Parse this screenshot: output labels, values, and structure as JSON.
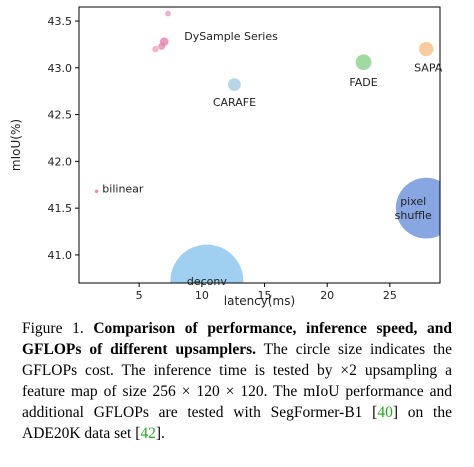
{
  "chart_data": {
    "type": "scatter",
    "xlabel": "latency(ms)",
    "ylabel": "mIoU(%)",
    "xlim": [
      0.2,
      29
    ],
    "ylim": [
      40.7,
      43.65
    ],
    "xticks": [
      5,
      10,
      15,
      20,
      25
    ],
    "yticks": [
      41.0,
      41.5,
      42.0,
      42.5,
      43.0,
      43.5
    ],
    "grid": false,
    "points": [
      {
        "label": "bilinear",
        "x": 1.6,
        "y": 41.68,
        "gflops": 0.3,
        "color": "#f08080"
      },
      {
        "label": "",
        "x": 6.3,
        "y": 43.2,
        "gflops": 1.0,
        "color": "#f4a6c0"
      },
      {
        "label": "",
        "x": 6.8,
        "y": 43.23,
        "gflops": 1.2,
        "color": "#ee8cb4"
      },
      {
        "label": "",
        "x": 7.0,
        "y": 43.28,
        "gflops": 1.8,
        "color": "#e785b5"
      },
      {
        "label": "",
        "x": 7.3,
        "y": 43.58,
        "gflops": 0.8,
        "color": "#f2a0c4"
      },
      {
        "label": "CARAFE",
        "x": 12.6,
        "y": 42.82,
        "gflops": 4.0,
        "color": "#a9cfe2"
      },
      {
        "label": "FADE",
        "x": 22.9,
        "y": 43.06,
        "gflops": 6.0,
        "color": "#8fd48f"
      },
      {
        "label": "SAPA",
        "x": 27.9,
        "y": 43.2,
        "gflops": 5.0,
        "color": "#f6c38e"
      },
      {
        "label": "pixel shuffle",
        "x": 27.9,
        "y": 41.5,
        "gflops": 90,
        "color": "#7396dc"
      },
      {
        "label": "deconv",
        "x": 10.4,
        "y": 40.72,
        "gflops": 130,
        "color": "#8ec8ef"
      }
    ],
    "annotations": [
      {
        "text": "DySample Series",
        "x": 8.6,
        "y": 43.34
      }
    ]
  },
  "caption": {
    "fig_label": "Figure 1.",
    "bold_text": "Comparison of performance, inference speed, and GFLOPs of different upsamplers.",
    "text_a": "The circle size indicates the GFLOPs cost. The inference time is tested by ×2 upsampling a feature map of size 256 × 120 × 120. The mIoU performance and additional GFLOPs are tested with SegFormer-B1 [",
    "cite_1": "40",
    "text_b": "] on the ADE20K data set [",
    "cite_2": "42",
    "text_c": "]."
  }
}
